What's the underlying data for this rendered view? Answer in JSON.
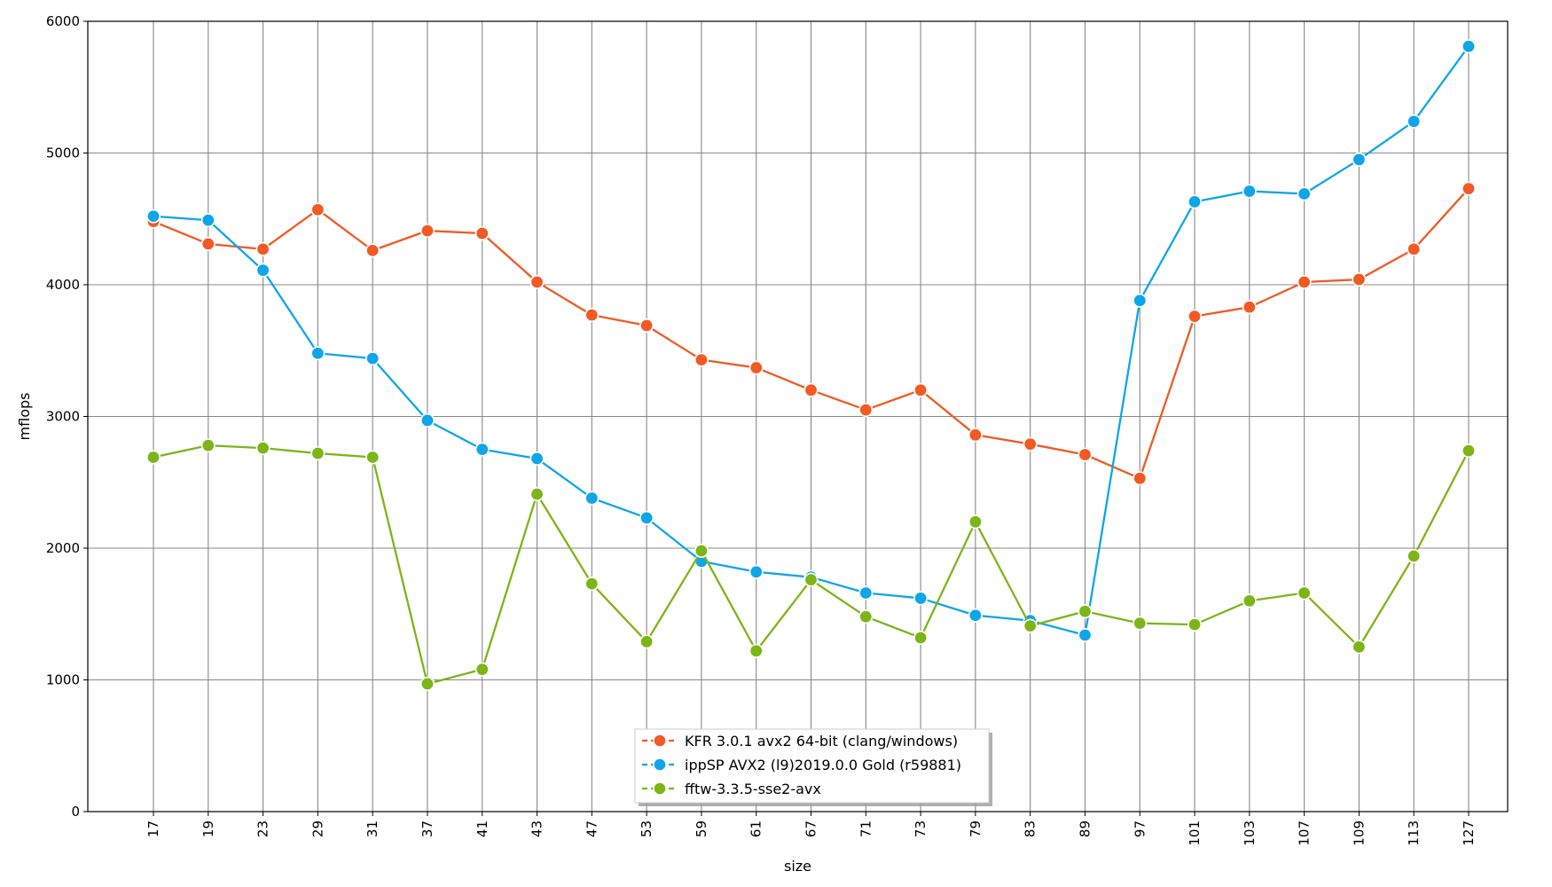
{
  "chart_data": {
    "type": "line",
    "xlabel": "size",
    "ylabel": "mflops",
    "ylim": [
      0,
      6000
    ],
    "yticks": [
      0,
      1000,
      2000,
      3000,
      4000,
      5000,
      6000
    ],
    "grid": true,
    "legend_position": "bottom-center",
    "categories": [
      "17",
      "19",
      "23",
      "29",
      "31",
      "37",
      "41",
      "43",
      "47",
      "53",
      "59",
      "61",
      "67",
      "71",
      "73",
      "79",
      "83",
      "89",
      "97",
      "101",
      "103",
      "107",
      "109",
      "113",
      "127"
    ],
    "series": [
      {
        "name": "KFR 3.0.1 avx2 64-bit (clang/windows)",
        "color": "#f15a24",
        "values": [
          4480,
          4310,
          4270,
          4570,
          4260,
          4410,
          4390,
          4020,
          3770,
          3690,
          3430,
          3370,
          3200,
          3050,
          3200,
          2860,
          2790,
          2710,
          2530,
          3760,
          3830,
          4020,
          4040,
          4270,
          4730
        ]
      },
      {
        "name": "ippSP AVX2 (l9)2019.0.0 Gold (r59881)",
        "color": "#0ea5e9",
        "values": [
          4520,
          4490,
          4110,
          3480,
          3440,
          2970,
          2750,
          2680,
          2380,
          2230,
          1900,
          1820,
          1780,
          1660,
          1620,
          1490,
          1450,
          1340,
          3880,
          4630,
          4710,
          4690,
          4950,
          5240,
          5810
        ]
      },
      {
        "name": "fftw-3.3.5-sse2-avx",
        "color": "#7cb518",
        "values": [
          2690,
          2780,
          2760,
          2720,
          2690,
          970,
          1080,
          2410,
          1730,
          1290,
          1980,
          1220,
          1760,
          1480,
          1320,
          2200,
          1410,
          1520,
          1430,
          1420,
          1600,
          1660,
          1250,
          1940,
          2740
        ]
      }
    ]
  }
}
